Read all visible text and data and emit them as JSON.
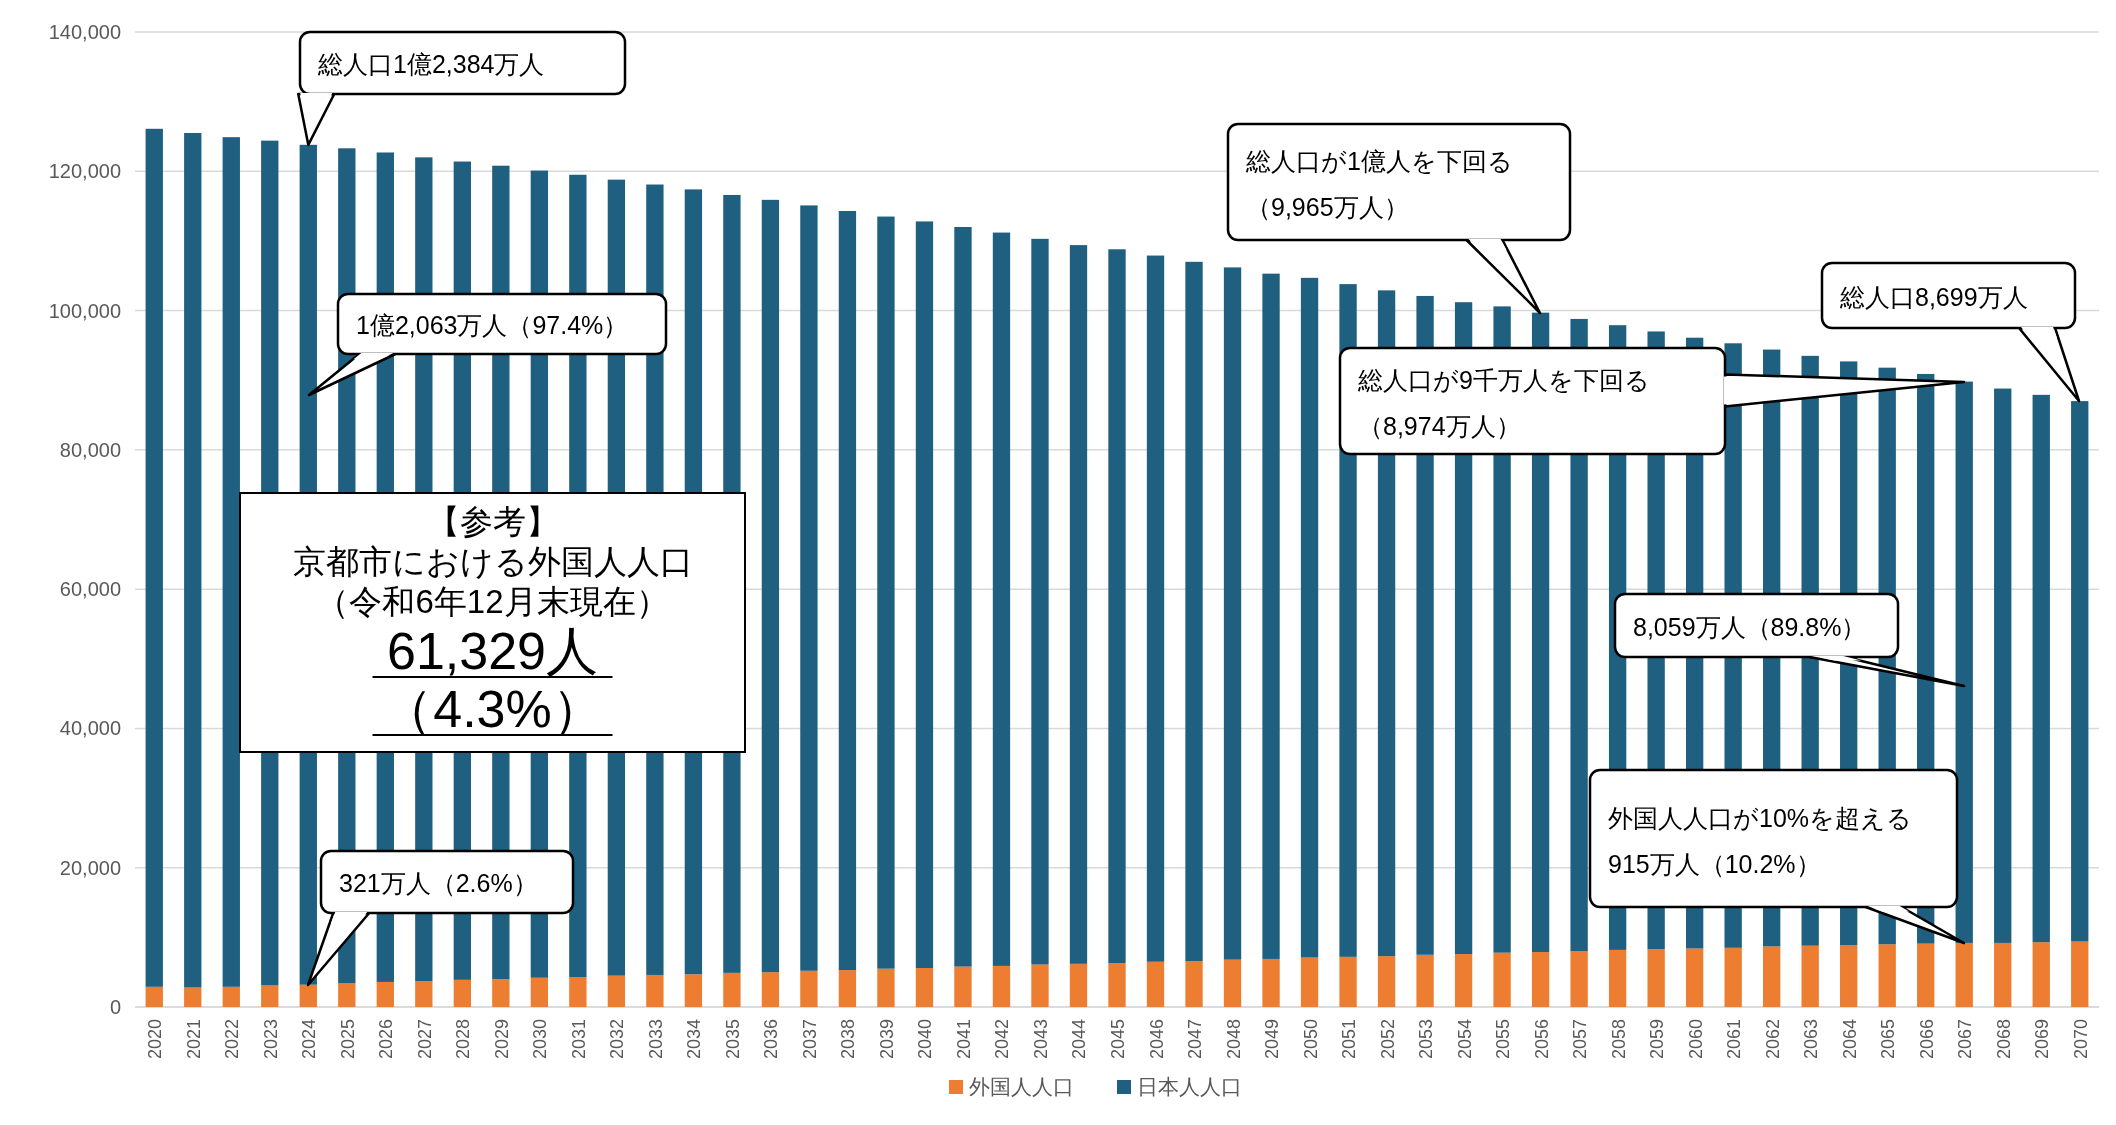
{
  "chart_data": {
    "type": "bar",
    "stacked": true,
    "categories": [
      "2020",
      "2021",
      "2022",
      "2023",
      "2024",
      "2025",
      "2026",
      "2027",
      "2028",
      "2029",
      "2030",
      "2031",
      "2032",
      "2033",
      "2034",
      "2035",
      "2036",
      "2037",
      "2038",
      "2039",
      "2040",
      "2041",
      "2042",
      "2043",
      "2044",
      "2045",
      "2046",
      "2047",
      "2048",
      "2049",
      "2050",
      "2051",
      "2052",
      "2053",
      "2054",
      "2055",
      "2056",
      "2057",
      "2058",
      "2059",
      "2060",
      "2061",
      "2062",
      "2063",
      "2064",
      "2065",
      "2066",
      "2067",
      "2068",
      "2069",
      "2070"
    ],
    "series": [
      {
        "name": "外国人人口",
        "color": "#ed7d31",
        "values": [
          2900,
          2800,
          2900,
          3100,
          3200,
          3400,
          3600,
          3700,
          3900,
          4000,
          4200,
          4300,
          4500,
          4600,
          4700,
          4900,
          5000,
          5200,
          5300,
          5500,
          5600,
          5800,
          5900,
          6100,
          6200,
          6300,
          6500,
          6600,
          6800,
          6900,
          7100,
          7200,
          7300,
          7500,
          7600,
          7800,
          7900,
          8000,
          8200,
          8300,
          8400,
          8500,
          8700,
          8800,
          8900,
          9000,
          9100,
          9200,
          9200,
          9300,
          9400
        ]
      },
      {
        "name": "日本人人口",
        "color": "#1f5f7f",
        "values": [
          123200,
          122700,
          122000,
          121300,
          120600,
          119900,
          119100,
          118300,
          117500,
          116800,
          115900,
          115200,
          114300,
          113500,
          112700,
          111700,
          110900,
          109900,
          109000,
          108000,
          107200,
          106200,
          105300,
          104200,
          103200,
          102500,
          101400,
          100400,
          99400,
          98400,
          97600,
          96600,
          95600,
          94600,
          93600,
          92800,
          91800,
          90800,
          89700,
          88700,
          87700,
          86800,
          85700,
          84700,
          83800,
          82800,
          81800,
          80600,
          79600,
          78600,
          77600
        ]
      }
    ],
    "ylim": [
      0,
      140000
    ],
    "yticks": [
      {
        "value": 0,
        "label": "0"
      },
      {
        "value": 20000,
        "label": "20,000"
      },
      {
        "value": 40000,
        "label": "40,000"
      },
      {
        "value": 60000,
        "label": "60,000"
      },
      {
        "value": 80000,
        "label": "80,000"
      },
      {
        "value": 100000,
        "label": "100,000"
      },
      {
        "value": 120000,
        "label": "120,000"
      },
      {
        "value": 140000,
        "label": "140,000"
      }
    ],
    "grid": "y",
    "legend": "bottom",
    "annotations": [
      {
        "text": "総人口1億2,384万人",
        "x": "2024",
        "y": 123800
      },
      "1億2,063万人（97.4%）",
      "総人口が1億人を下回る",
      "（9,965万人）",
      "総人口8,699万人",
      "総人口が9千万人を下回る",
      "（8,974万人）",
      "8,059万人（89.8%）",
      "外国人人口が10%を超える",
      "915万人（10.2%）",
      "321万人（2.6%）",
      "【参考】",
      "京都市における外国人人口",
      "（令和6年12月末現在）",
      "61,329人",
      "（4.3%）"
    ]
  }
}
